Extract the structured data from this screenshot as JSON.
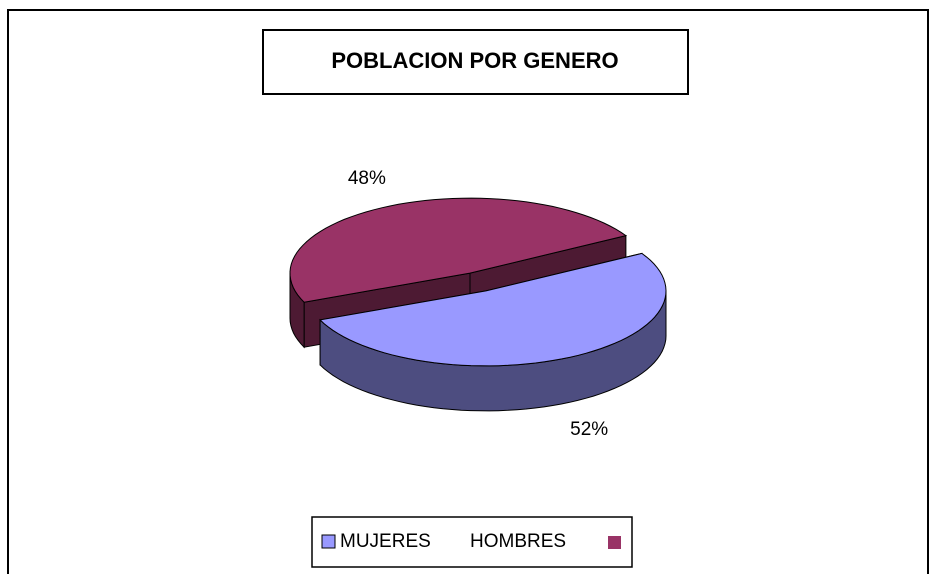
{
  "chart_data": {
    "type": "pie3d",
    "title": "POBLACION POR GENERO",
    "categories": [
      "MUJERES",
      "HOMBRES"
    ],
    "values": [
      52,
      48
    ],
    "value_labels": [
      "52%",
      "48%"
    ],
    "colors": [
      "#9999ff",
      "#993366"
    ],
    "legend": "bottom"
  }
}
